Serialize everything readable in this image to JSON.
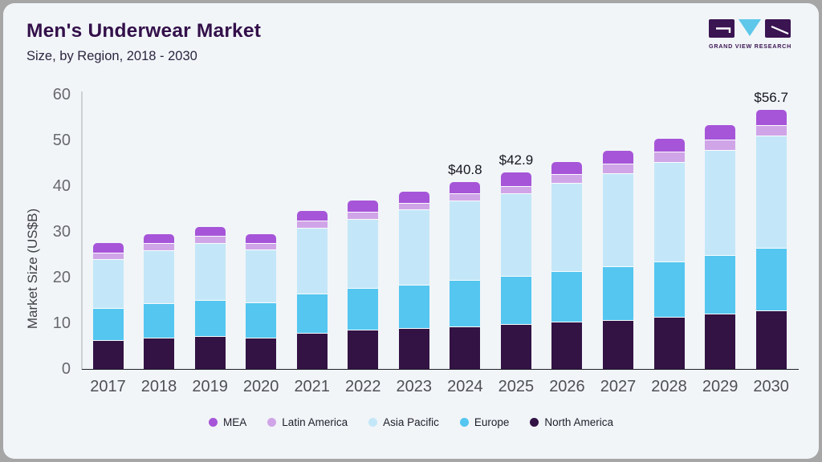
{
  "header": {
    "title": "Men's Underwear Market",
    "subtitle": "Size, by Region, 2018 - 2030",
    "logo_text": "GRAND VIEW RESEARCH"
  },
  "colors": {
    "card_background": "#f1f5f8",
    "frame": "#a6a6a6",
    "title_text": "#33104a",
    "logo_purple": "#3b1452",
    "logo_blue": "#5ec7ea",
    "segment_gap": "#fafcfe"
  },
  "chart_data": {
    "type": "bar",
    "stacked": true,
    "title": "Men's Underwear Market Size, by Region, 2018 - 2030",
    "xlabel": "",
    "ylabel": "Market Size (US$B)",
    "ylim": [
      0,
      60
    ],
    "yticks": [
      0,
      10,
      20,
      30,
      40,
      50,
      60
    ],
    "grid": false,
    "legend_position": "bottom",
    "categories": [
      "2017",
      "2018",
      "2019",
      "2020",
      "2021",
      "2022",
      "2023",
      "2024",
      "2025",
      "2026",
      "2027",
      "2028",
      "2029",
      "2030"
    ],
    "series": [
      {
        "id": "north-america",
        "name": "North America",
        "color": "#331244",
        "values": [
          6.2,
          6.6,
          7.0,
          6.7,
          7.8,
          8.4,
          8.8,
          9.1,
          9.7,
          10.2,
          10.6,
          11.2,
          11.9,
          12.7
        ]
      },
      {
        "id": "europe",
        "name": "Europe",
        "color": "#54c6f0",
        "values": [
          6.9,
          7.6,
          7.9,
          7.6,
          8.6,
          9.1,
          9.4,
          10.2,
          10.5,
          11.1,
          11.7,
          12.2,
          12.8,
          13.6
        ]
      },
      {
        "id": "asia-pacific",
        "name": "Asia Pacific",
        "color": "#c3e7f8",
        "values": [
          10.8,
          11.6,
          12.5,
          11.6,
          14.3,
          15.2,
          16.5,
          17.4,
          18.1,
          19.3,
          20.3,
          21.7,
          23.1,
          24.6
        ]
      },
      {
        "id": "latin-america",
        "name": "Latin America",
        "color": "#d0a5e8",
        "values": [
          1.4,
          1.5,
          1.5,
          1.5,
          1.6,
          1.5,
          1.5,
          1.5,
          1.6,
          1.9,
          2.2,
          2.2,
          2.2,
          2.3
        ]
      },
      {
        "id": "mea",
        "name": "MEA",
        "color": "#a655d8",
        "values": [
          2.2,
          2.1,
          2.2,
          2.1,
          2.2,
          2.7,
          2.6,
          2.6,
          3.0,
          2.7,
          2.9,
          3.0,
          3.4,
          3.5
        ]
      }
    ],
    "totals": [
      27.5,
      29.4,
      31.1,
      29.5,
      34.5,
      36.9,
      38.8,
      40.8,
      42.9,
      45.2,
      47.7,
      50.3,
      53.4,
      56.7
    ],
    "bar_labels": [
      "",
      "",
      "",
      "",
      "",
      "",
      "",
      "$40.8",
      "$42.9",
      "",
      "",
      "",
      "",
      "$56.7"
    ],
    "legend": [
      {
        "label": "MEA",
        "color": "#a655d8"
      },
      {
        "label": "Latin America",
        "color": "#d0a5e8"
      },
      {
        "label": "Asia Pacific",
        "color": "#c3e7f8"
      },
      {
        "label": "Europe",
        "color": "#54c6f0"
      },
      {
        "label": "North America",
        "color": "#331244"
      }
    ]
  }
}
